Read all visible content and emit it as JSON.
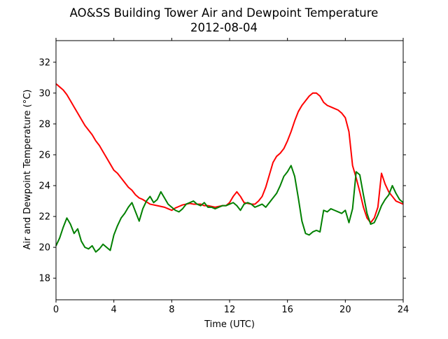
{
  "chart_data": {
    "type": "line",
    "title": "AO&SS Building Tower Air and Dewpoint Temperature",
    "subtitle": "2012-08-04",
    "xlabel": "Time (UTC)",
    "ylabel": "Air and Dewpoint Temperature (°C)",
    "xlim": [
      0,
      24
    ],
    "ylim": [
      16.6,
      33.4
    ],
    "xticks": [
      0,
      4,
      8,
      12,
      16,
      20,
      24
    ],
    "yticks": [
      18,
      20,
      22,
      24,
      26,
      28,
      30,
      32
    ],
    "grid": false,
    "series": [
      {
        "color": "#ff0000",
        "x": [
          0.0,
          0.25,
          0.5,
          0.75,
          1.0,
          1.25,
          1.5,
          1.75,
          2.0,
          2.25,
          2.5,
          2.75,
          3.0,
          3.25,
          3.5,
          3.75,
          4.0,
          4.25,
          4.5,
          4.75,
          5.0,
          5.25,
          5.5,
          5.75,
          6.0,
          6.25,
          6.5,
          6.75,
          7.0,
          7.25,
          7.5,
          7.75,
          8.0,
          8.25,
          8.5,
          8.75,
          9.0,
          9.25,
          9.5,
          9.75,
          10.0,
          10.25,
          10.5,
          10.75,
          11.0,
          11.25,
          11.5,
          11.75,
          12.0,
          12.25,
          12.5,
          12.75,
          13.0,
          13.25,
          13.5,
          13.75,
          14.0,
          14.25,
          14.5,
          14.75,
          15.0,
          15.25,
          15.5,
          15.75,
          16.0,
          16.25,
          16.5,
          16.75,
          17.0,
          17.25,
          17.5,
          17.75,
          18.0,
          18.25,
          18.5,
          18.75,
          19.0,
          19.25,
          19.5,
          19.75,
          20.0,
          20.25,
          20.5,
          20.75,
          21.0,
          21.25,
          21.5,
          21.75,
          22.0,
          22.25,
          22.5,
          22.75,
          23.0,
          23.25,
          23.5,
          23.75,
          24.0
        ],
        "values": [
          30.6,
          30.4,
          30.2,
          29.9,
          29.5,
          29.1,
          28.7,
          28.3,
          27.9,
          27.6,
          27.3,
          26.9,
          26.6,
          26.2,
          25.8,
          25.4,
          25.0,
          24.8,
          24.5,
          24.2,
          23.9,
          23.7,
          23.4,
          23.2,
          23.1,
          22.95,
          22.8,
          22.75,
          22.7,
          22.65,
          22.6,
          22.5,
          22.4,
          22.55,
          22.65,
          22.75,
          22.8,
          22.85,
          22.8,
          22.8,
          22.8,
          22.7,
          22.7,
          22.65,
          22.6,
          22.65,
          22.7,
          22.7,
          22.9,
          23.3,
          23.6,
          23.3,
          22.9,
          22.85,
          22.8,
          22.8,
          23.0,
          23.3,
          23.9,
          24.7,
          25.5,
          25.9,
          26.1,
          26.4,
          26.9,
          27.5,
          28.2,
          28.8,
          29.2,
          29.5,
          29.8,
          30.0,
          30.0,
          29.8,
          29.4,
          29.2,
          29.1,
          29.0,
          28.9,
          28.7,
          28.4,
          27.5,
          25.3,
          24.5,
          23.6,
          22.6,
          21.9,
          21.6,
          21.9,
          22.6,
          24.8,
          24.1,
          23.6,
          23.3,
          23.0,
          22.9,
          22.8
        ]
      },
      {
        "color": "#008000",
        "x": [
          0.0,
          0.25,
          0.5,
          0.75,
          1.0,
          1.25,
          1.5,
          1.75,
          2.0,
          2.25,
          2.5,
          2.75,
          3.0,
          3.25,
          3.5,
          3.75,
          4.0,
          4.25,
          4.5,
          4.75,
          5.0,
          5.25,
          5.5,
          5.75,
          6.0,
          6.25,
          6.5,
          6.75,
          7.0,
          7.25,
          7.5,
          7.75,
          8.0,
          8.25,
          8.5,
          8.75,
          9.0,
          9.25,
          9.5,
          9.75,
          10.0,
          10.25,
          10.5,
          10.75,
          11.0,
          11.25,
          11.5,
          11.75,
          12.0,
          12.25,
          12.5,
          12.75,
          13.0,
          13.25,
          13.5,
          13.75,
          14.0,
          14.25,
          14.5,
          14.75,
          15.0,
          15.25,
          15.5,
          15.75,
          16.0,
          16.25,
          16.5,
          16.75,
          17.0,
          17.25,
          17.5,
          17.75,
          18.0,
          18.25,
          18.5,
          18.75,
          19.0,
          19.25,
          19.5,
          19.75,
          20.0,
          20.25,
          20.5,
          20.75,
          21.0,
          21.25,
          21.5,
          21.75,
          22.0,
          22.25,
          22.5,
          22.75,
          23.0,
          23.25,
          23.5,
          23.75,
          24.0
        ],
        "values": [
          20.1,
          20.6,
          21.3,
          21.9,
          21.5,
          20.9,
          21.2,
          20.4,
          20.0,
          19.9,
          20.1,
          19.7,
          19.9,
          20.2,
          20.0,
          19.8,
          20.8,
          21.4,
          21.9,
          22.2,
          22.6,
          22.9,
          22.3,
          21.7,
          22.5,
          23.0,
          23.3,
          22.9,
          23.1,
          23.6,
          23.2,
          22.8,
          22.6,
          22.4,
          22.3,
          22.5,
          22.8,
          22.9,
          23.0,
          22.8,
          22.7,
          22.9,
          22.6,
          22.6,
          22.5,
          22.6,
          22.7,
          22.7,
          22.8,
          22.9,
          22.7,
          22.4,
          22.8,
          22.9,
          22.8,
          22.6,
          22.7,
          22.8,
          22.6,
          22.9,
          23.2,
          23.5,
          24.0,
          24.6,
          24.9,
          25.3,
          24.6,
          23.2,
          21.7,
          20.9,
          20.8,
          21.0,
          21.1,
          21.0,
          22.4,
          22.3,
          22.5,
          22.4,
          22.3,
          22.2,
          22.4,
          21.6,
          22.5,
          24.9,
          24.7,
          23.4,
          22.2,
          21.5,
          21.6,
          22.1,
          22.7,
          23.1,
          23.4,
          24.0,
          23.5,
          23.1,
          22.9
        ]
      }
    ]
  }
}
